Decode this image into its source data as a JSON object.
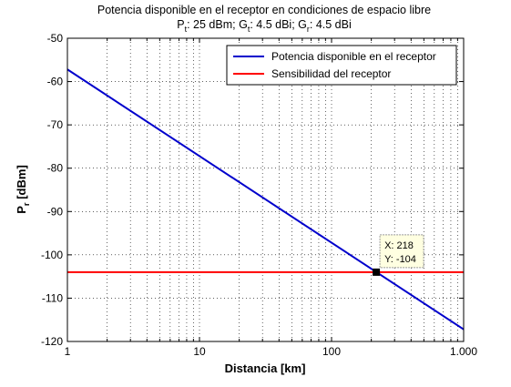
{
  "title": {
    "line1": "Potencia disponible en el receptor en condiciones de espacio libre",
    "line2_parts": {
      "p": "P",
      "p_sub": "t",
      "p_val": ": 25 dBm; ",
      "g1": "G",
      "g1_sub": "t",
      "g1_val": ": 4.5 dBi; ",
      "g2": "G",
      "g2_sub": "r",
      "g2_val": ": 4.5 dBi"
    }
  },
  "chart_data": {
    "type": "line",
    "xscale": "log",
    "xlim": [
      1,
      1000
    ],
    "ylim": [
      -120,
      -50
    ],
    "grid": true,
    "xlabel": "Distancia [km]",
    "ylabel": {
      "main": "P",
      "sub": "r",
      "rest": " [dBm]"
    },
    "xticks": [
      {
        "value": 1,
        "label": "1"
      },
      {
        "value": 10,
        "label": "10"
      },
      {
        "value": 100,
        "label": "100"
      },
      {
        "value": 1000,
        "label": "1.000"
      }
    ],
    "yticks": [
      -50,
      -60,
      -70,
      -80,
      -90,
      -100,
      -110,
      -120
    ],
    "series": [
      {
        "name": "Potencia disponible en el receptor",
        "color": "#0000cc",
        "x": [
          1,
          1000
        ],
        "y": [
          -57.2,
          -117.2
        ]
      },
      {
        "name": "Sensibilidad del receptor",
        "color": "#ff0000",
        "x": [
          1,
          1000
        ],
        "y": [
          -104,
          -104
        ]
      }
    ],
    "legend": {
      "placement": "top-right"
    },
    "datatip": {
      "x": 218,
      "y": -104,
      "x_label": "X: 218",
      "y_label": "Y: -104"
    }
  }
}
